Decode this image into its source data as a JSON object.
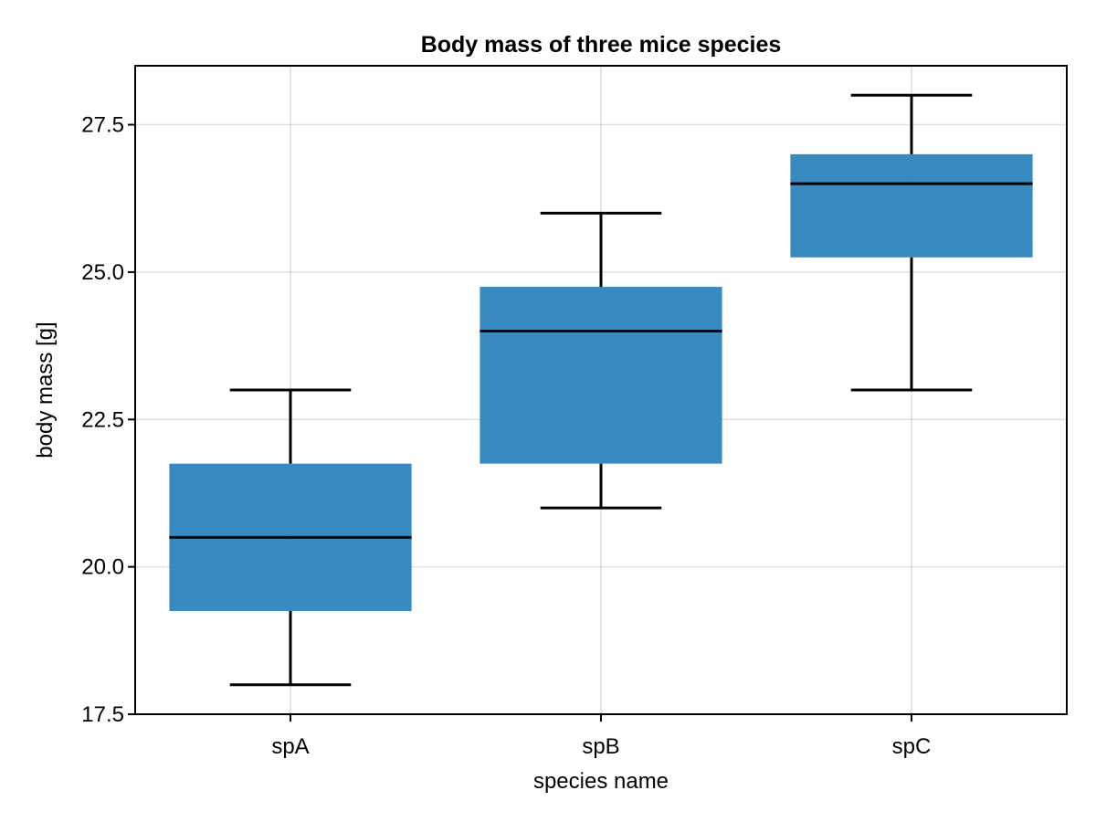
{
  "chart_data": {
    "type": "box",
    "title": "Body mass of three mice species",
    "xlabel": "species name",
    "ylabel": "body mass [g]",
    "ylim": [
      17.5,
      28.5
    ],
    "yticks": [
      17.5,
      20.0,
      22.5,
      25.0,
      27.5
    ],
    "ytick_labels": [
      "17.5",
      "20.0",
      "22.5",
      "25.0",
      "27.5"
    ],
    "grid": true,
    "legend": "none",
    "box_color": "#2c85bd",
    "line_color": "#000000",
    "categories": [
      "spA",
      "spB",
      "spC"
    ],
    "boxes": [
      {
        "category": "spA",
        "min": 18.0,
        "q1": 19.25,
        "median": 20.5,
        "q3": 21.75,
        "max": 23.0
      },
      {
        "category": "spB",
        "min": 21.0,
        "q1": 21.75,
        "median": 24.0,
        "q3": 24.75,
        "max": 26.0
      },
      {
        "category": "spC",
        "min": 23.0,
        "q1": 25.25,
        "median": 26.5,
        "q3": 27.0,
        "max": 28.0
      }
    ]
  }
}
